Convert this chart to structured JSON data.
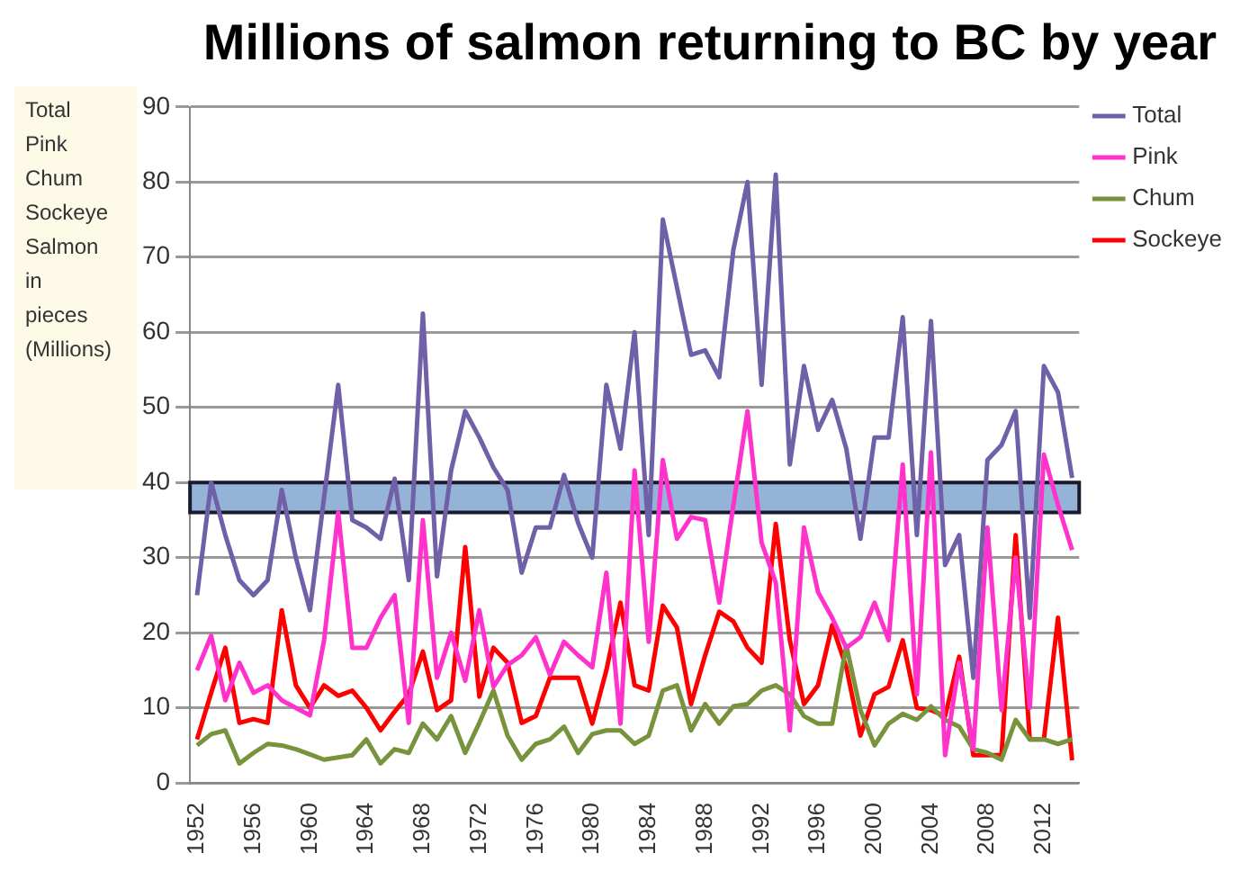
{
  "chart_data": {
    "type": "line",
    "title": "Millions of salmon returning to BC by year",
    "ylabel": "Total Pink Chum Sockeye Salmon in pieces (Millions)",
    "x": [
      1952,
      1953,
      1954,
      1955,
      1956,
      1957,
      1958,
      1959,
      1960,
      1961,
      1962,
      1963,
      1964,
      1965,
      1966,
      1967,
      1968,
      1969,
      1970,
      1971,
      1972,
      1973,
      1974,
      1975,
      1976,
      1977,
      1978,
      1979,
      1980,
      1981,
      1982,
      1983,
      1984,
      1985,
      1986,
      1987,
      1988,
      1989,
      1990,
      1991,
      1992,
      1993,
      1994,
      1995,
      1996,
      1997,
      1998,
      1999,
      2000,
      2001,
      2002,
      2003,
      2004,
      2005,
      2006,
      2007,
      2008,
      2009,
      2010,
      2011,
      2012,
      2013,
      2014
    ],
    "series": [
      {
        "name": "Total",
        "color": "#7060a8",
        "values": [
          25,
          40,
          33,
          27,
          25,
          27,
          39,
          30,
          23,
          38,
          53,
          35,
          34,
          32.5,
          40.5,
          27,
          62.5,
          27.5,
          41.6,
          49.5,
          46,
          42,
          39,
          28,
          34,
          34,
          41,
          34.6,
          30,
          53,
          44.5,
          60,
          33,
          75,
          66,
          57,
          57.6,
          54,
          71,
          80,
          53,
          81,
          42.4,
          55.5,
          47,
          51,
          44.5,
          32.5,
          46,
          46,
          62,
          33,
          61.5,
          29,
          33,
          14,
          43,
          45,
          49.5,
          22,
          55.5,
          52,
          40.6
        ]
      },
      {
        "name": "Pink",
        "color": "#ff33cc",
        "values": [
          15,
          19.6,
          11,
          16,
          12,
          13,
          11,
          10,
          9,
          19,
          36,
          18,
          18,
          22,
          25,
          8,
          35,
          14,
          20,
          13.6,
          23,
          12.8,
          15.7,
          17,
          19.4,
          14.4,
          18.8,
          17,
          15.4,
          28,
          7.9,
          41.6,
          18.8,
          43,
          32.5,
          35.4,
          35,
          24,
          37,
          49.5,
          32,
          26.7,
          7,
          34,
          25.4,
          22,
          18,
          19.4,
          24,
          19,
          42.4,
          11.8,
          44,
          3.7,
          16,
          4.5,
          34,
          9.7,
          30,
          10,
          43.7,
          37,
          31
        ]
      },
      {
        "name": "Chum",
        "color": "#77933c",
        "values": [
          5,
          6.5,
          7,
          2.6,
          4,
          5.2,
          5,
          4.5,
          3.8,
          3.1,
          3.4,
          3.7,
          5.8,
          2.6,
          4.5,
          4,
          7.9,
          5.8,
          8.9,
          4,
          8,
          12.3,
          6.3,
          3.1,
          5.2,
          5.8,
          7.5,
          4,
          6.5,
          7,
          7,
          5.2,
          6.3,
          12.3,
          13,
          7,
          10.5,
          7.9,
          10.2,
          10.5,
          12.3,
          13,
          11.8,
          8.9,
          7.9,
          7.9,
          18.3,
          9.7,
          5,
          7.9,
          9.2,
          8.4,
          10.2,
          8.4,
          7.5,
          4.5,
          4,
          3.1,
          8.4,
          5.8,
          5.8,
          5.2,
          5.8
        ]
      },
      {
        "name": "Sockeye",
        "color": "#ff0000",
        "values": [
          5.8,
          12,
          18,
          8,
          8.5,
          8,
          23,
          13,
          10,
          13,
          11.6,
          12.3,
          10,
          7,
          9.5,
          11.8,
          17.5,
          9.7,
          11,
          31.4,
          11.5,
          18,
          16,
          8,
          8.9,
          14,
          14,
          14,
          7.9,
          15,
          24,
          13,
          12.3,
          23.6,
          20.7,
          10.5,
          17,
          22.8,
          21.5,
          18,
          16,
          34.5,
          19,
          10.5,
          13,
          21,
          15.4,
          6.3,
          11.8,
          12.8,
          19,
          10,
          9.7,
          8.9,
          16.8,
          3.7,
          3.7,
          3.7,
          33,
          5.8,
          5.8,
          22,
          3
        ]
      }
    ],
    "xlim": [
      1951.5,
      2014.5
    ],
    "xticks": [
      1952,
      1956,
      1960,
      1964,
      1968,
      1972,
      1976,
      1980,
      1984,
      1988,
      1992,
      1996,
      2000,
      2004,
      2008,
      2012
    ],
    "ylim": [
      0,
      90
    ],
    "yticks": [
      0,
      10,
      20,
      30,
      40,
      50,
      60,
      70,
      80,
      90
    ],
    "bands": [
      {
        "axis": "y",
        "from": 36,
        "to": 40,
        "color": "#95b3d7"
      }
    ],
    "grid": "y",
    "legend": "right",
    "marker": "none",
    "line_style": "solid"
  }
}
